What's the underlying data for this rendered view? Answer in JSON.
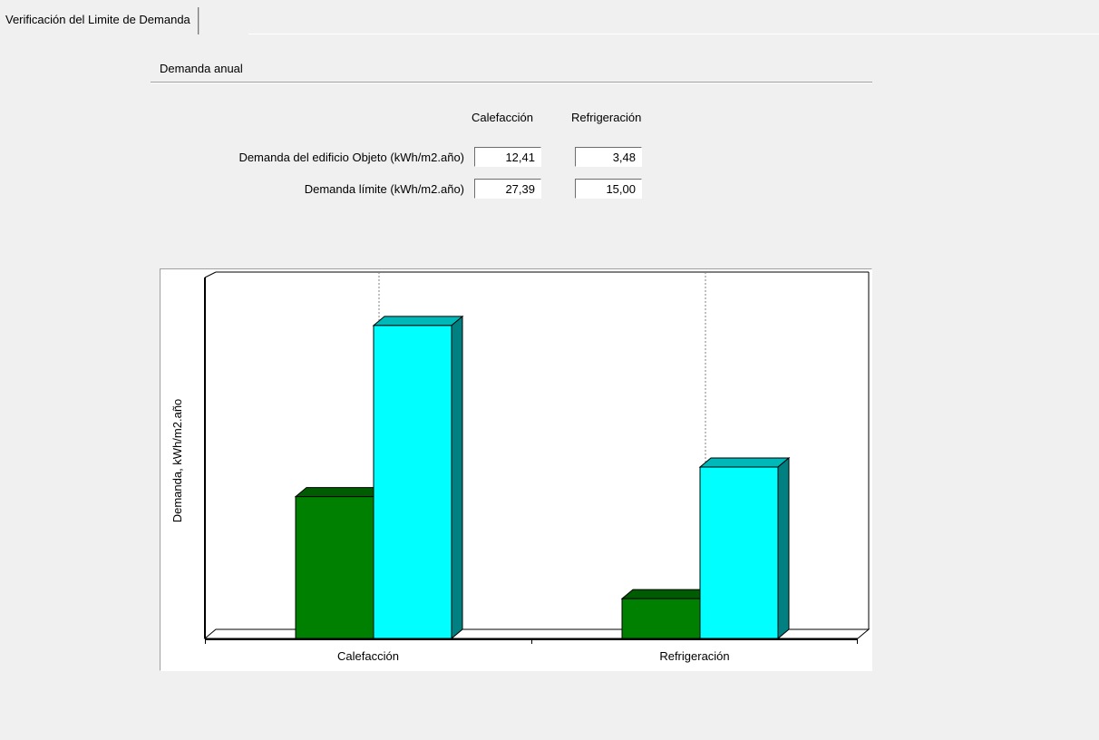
{
  "tab": {
    "label": "Verificación del Limite de Demanda"
  },
  "group": {
    "title": "Demanda anual"
  },
  "columns": {
    "heating": "Calefacción",
    "cooling": "Refrigeración"
  },
  "rows": [
    {
      "label": "Demanda del edificio Objeto (kWh/m2.año)",
      "heating": "12,41",
      "cooling": "3,48"
    },
    {
      "label": "Demanda límite (kWh/m2.año)",
      "heating": "27,39",
      "cooling": "15,00"
    }
  ],
  "chart_data": {
    "type": "bar",
    "categories": [
      "Calefacción",
      "Refrigeración"
    ],
    "series": [
      {
        "values": [
          12.41,
          3.48
        ],
        "color": "#008000"
      },
      {
        "values": [
          27.39,
          15.0
        ],
        "color": "#00ffff"
      }
    ],
    "title": "",
    "xlabel": "",
    "ylabel": "Demanda, kWh/m2.año",
    "ylim": [
      0,
      30
    ],
    "grid": "vertical-dashed-at-categories",
    "legend": "none",
    "style": "3d"
  }
}
